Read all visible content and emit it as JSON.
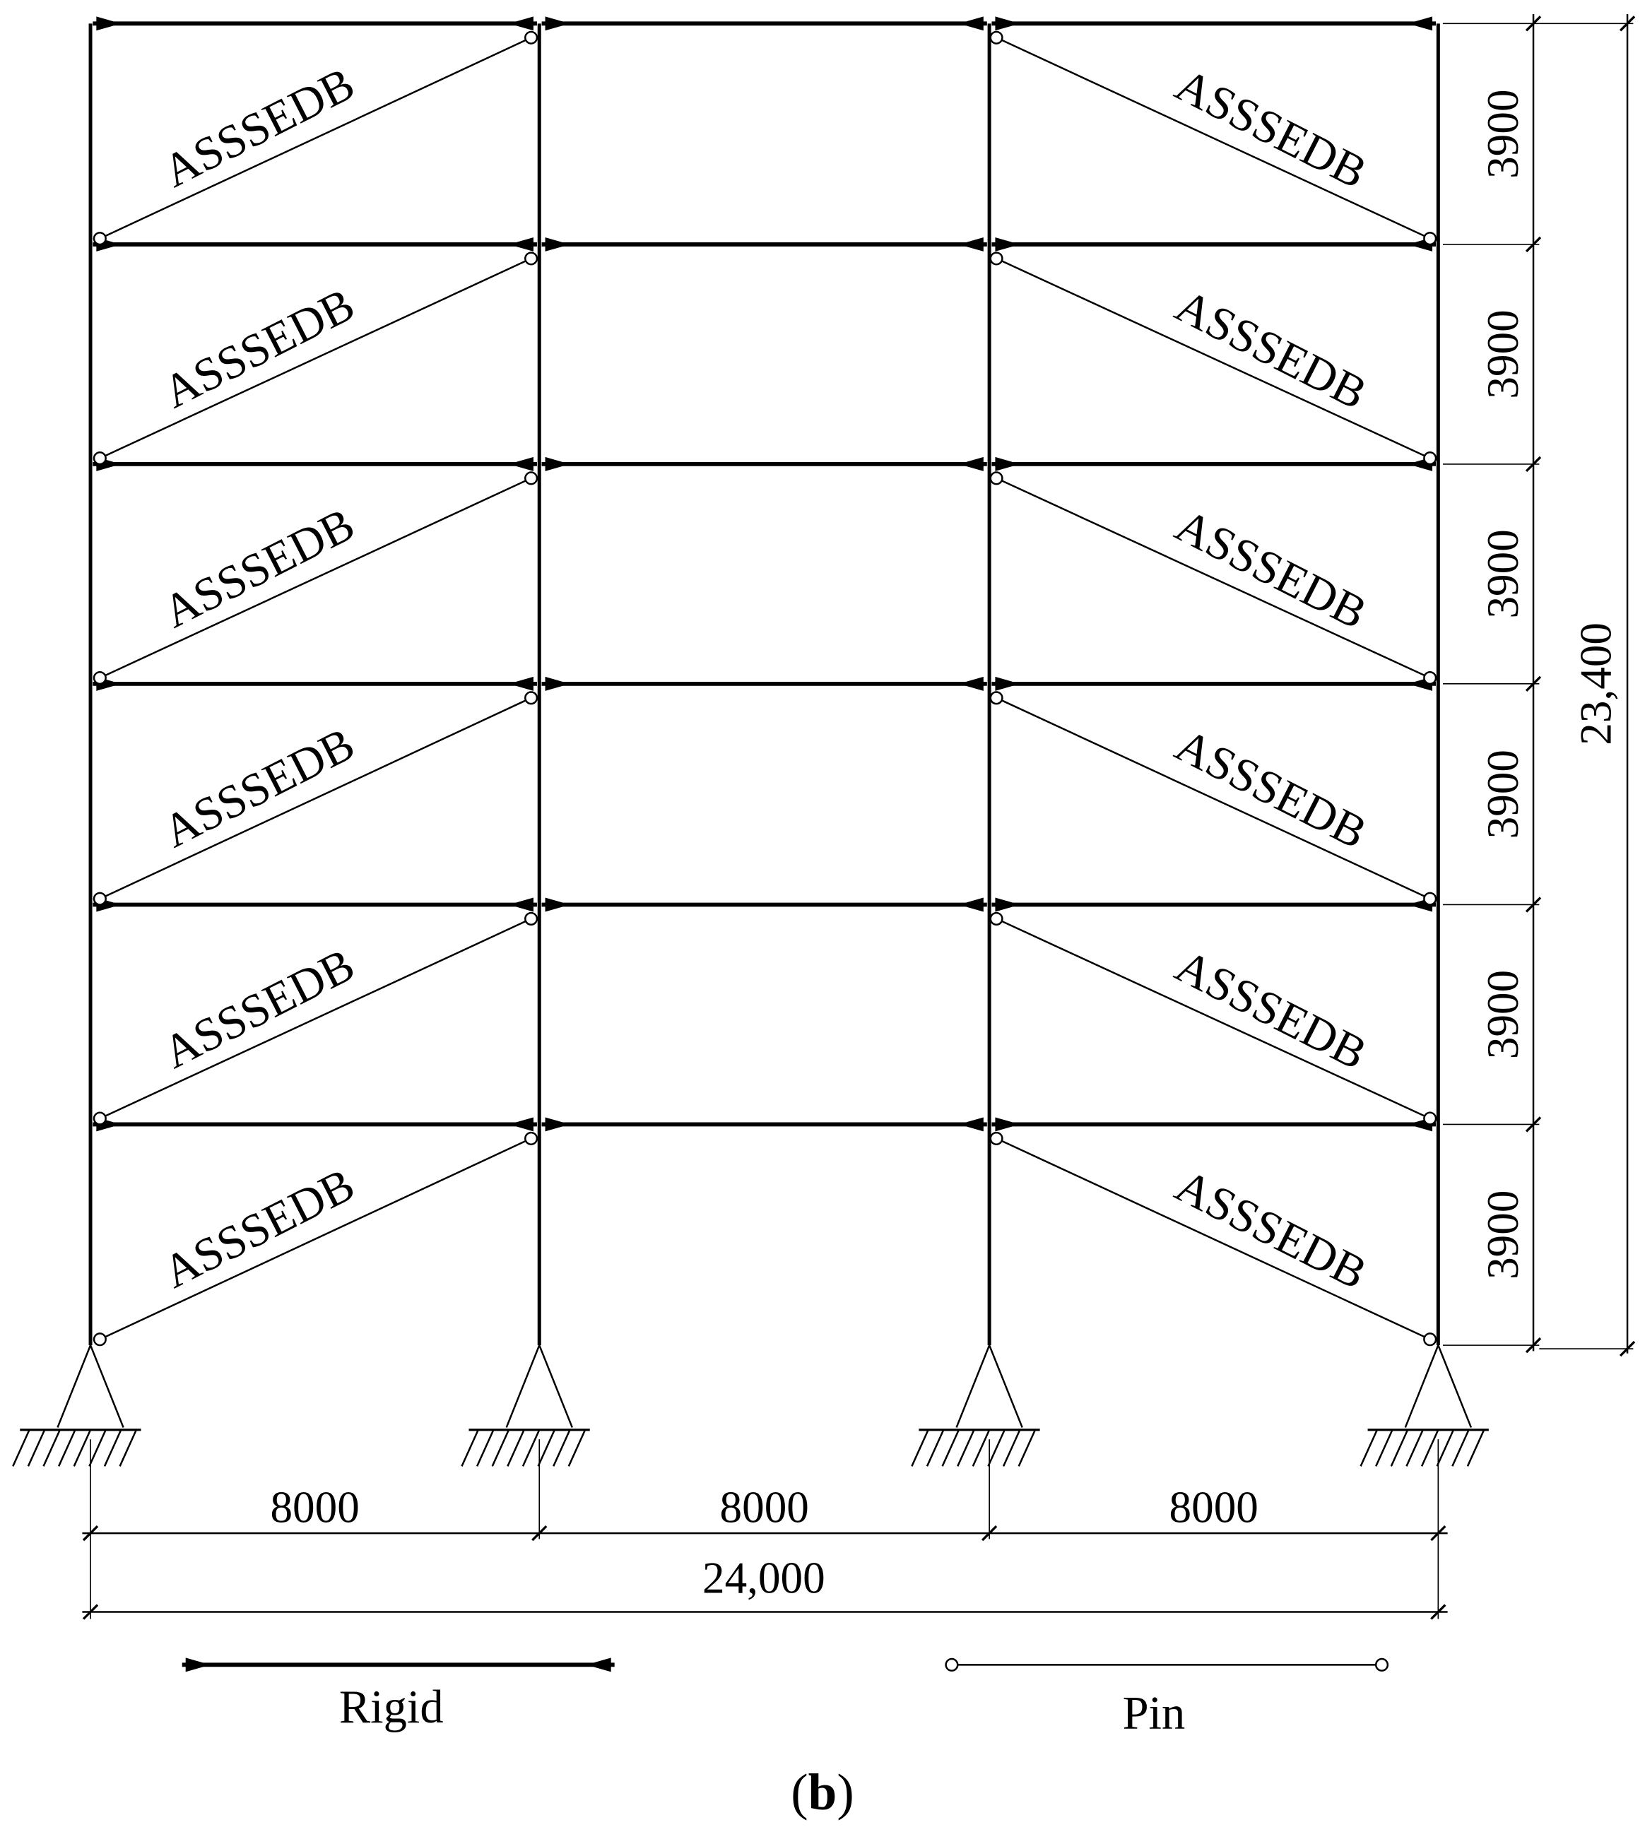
{
  "left_braces": [
    "ASSSEDB",
    "ASSSEDB",
    "ASSSEDB",
    "ASSSEDB",
    "ASSSEDB",
    "ASSSEDB"
  ],
  "right_braces": [
    "ASSSEDB",
    "ASSSEDB",
    "ASSSEDB",
    "ASSSEDB",
    "ASSSEDB",
    "ASSSEDB"
  ],
  "story_heights": [
    "3900",
    "3900",
    "3900",
    "3900",
    "3900",
    "3900"
  ],
  "total_height": "23,400",
  "bay_widths": [
    "8000",
    "8000",
    "8000"
  ],
  "total_width": "24,000",
  "legend": {
    "rigid": "Rigid",
    "pin": "Pin"
  },
  "caption": [
    "(",
    "b",
    ")"
  ]
}
